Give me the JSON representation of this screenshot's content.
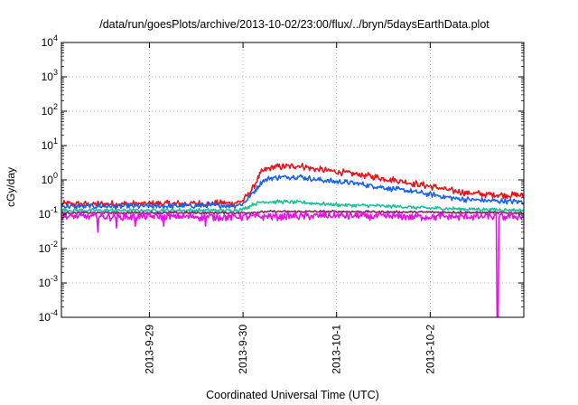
{
  "chart_data": {
    "type": "line",
    "title": "/data/run/goesPlots/archive/2013-10-02/23:00/flux/../bryn/5daysEarthData.plot",
    "xlabel": "Coordinated Universal Time (UTC)",
    "ylabel": "cGy/day",
    "yscale": "log",
    "ylim": [
      0.0001,
      10000
    ],
    "xlim": [
      -0.94,
      4.0
    ],
    "grid": true,
    "y_ticks": [
      {
        "base": "10",
        "exp": "-4",
        "value": 0.0001
      },
      {
        "base": "10",
        "exp": "-3",
        "value": 0.001
      },
      {
        "base": "10",
        "exp": "-2",
        "value": 0.01
      },
      {
        "base": "10",
        "exp": "-1",
        "value": 0.1
      },
      {
        "base": "10",
        "exp": "0",
        "value": 1
      },
      {
        "base": "10",
        "exp": "1",
        "value": 10
      },
      {
        "base": "10",
        "exp": "2",
        "value": 100
      },
      {
        "base": "10",
        "exp": "3",
        "value": 1000
      },
      {
        "base": "10",
        "exp": "4",
        "value": 10000
      }
    ],
    "x_ticks": [
      {
        "label": "2013-9-29",
        "value": 0
      },
      {
        "label": "2013-9-30",
        "value": 1
      },
      {
        "label": "2013-10-1",
        "value": 2
      },
      {
        "label": "2013-10-2",
        "value": 3
      }
    ],
    "series": [
      {
        "color": "#e8141c",
        "noise": 0.18,
        "dips": [],
        "points": [
          [
            -0.94,
            0.2
          ],
          [
            0,
            0.2
          ],
          [
            0.9,
            0.21
          ],
          [
            1.0,
            0.25
          ],
          [
            1.1,
            0.55
          ],
          [
            1.2,
            1.7
          ],
          [
            1.3,
            2.3
          ],
          [
            1.6,
            2.6
          ],
          [
            1.8,
            2.0
          ],
          [
            2.2,
            1.5
          ],
          [
            2.6,
            1.0
          ],
          [
            3.0,
            0.65
          ],
          [
            3.3,
            0.45
          ],
          [
            3.6,
            0.38
          ],
          [
            4.0,
            0.35
          ]
        ]
      },
      {
        "color": "#1a63e8",
        "noise": 0.15,
        "dips": [],
        "points": [
          [
            -0.94,
            0.17
          ],
          [
            0,
            0.17
          ],
          [
            0.9,
            0.18
          ],
          [
            1.0,
            0.2
          ],
          [
            1.1,
            0.4
          ],
          [
            1.2,
            0.9
          ],
          [
            1.3,
            1.15
          ],
          [
            1.6,
            1.25
          ],
          [
            1.8,
            1.0
          ],
          [
            2.2,
            0.8
          ],
          [
            2.6,
            0.55
          ],
          [
            3.0,
            0.38
          ],
          [
            3.3,
            0.28
          ],
          [
            3.6,
            0.25
          ],
          [
            4.0,
            0.23
          ]
        ]
      },
      {
        "color": "#1ec09a",
        "noise": 0.1,
        "dips": [],
        "points": [
          [
            -0.94,
            0.13
          ],
          [
            0.9,
            0.13
          ],
          [
            1.0,
            0.14
          ],
          [
            1.1,
            0.19
          ],
          [
            1.2,
            0.23
          ],
          [
            1.5,
            0.23
          ],
          [
            2.0,
            0.19
          ],
          [
            2.6,
            0.17
          ],
          [
            3.0,
            0.15
          ],
          [
            3.5,
            0.14
          ],
          [
            4.0,
            0.13
          ]
        ]
      },
      {
        "color": "#7a2a5a",
        "noise": 0.06,
        "dips": [],
        "points": [
          [
            -0.94,
            0.11
          ],
          [
            1.0,
            0.11
          ],
          [
            1.3,
            0.12
          ],
          [
            2.0,
            0.12
          ],
          [
            3.0,
            0.115
          ],
          [
            4.0,
            0.11
          ]
        ]
      },
      {
        "color": "#e812e8",
        "noise": 0.22,
        "dips": [
          [
            -0.55,
            0.03
          ],
          [
            -0.35,
            0.04
          ],
          [
            -0.15,
            0.045
          ],
          [
            0.15,
            0.045
          ],
          [
            0.6,
            0.045
          ],
          [
            3.72,
            5e-05
          ]
        ],
        "points": [
          [
            -0.94,
            0.085
          ],
          [
            1.0,
            0.085
          ],
          [
            2.0,
            0.09
          ],
          [
            3.0,
            0.085
          ],
          [
            4.0,
            0.085
          ]
        ]
      }
    ]
  }
}
